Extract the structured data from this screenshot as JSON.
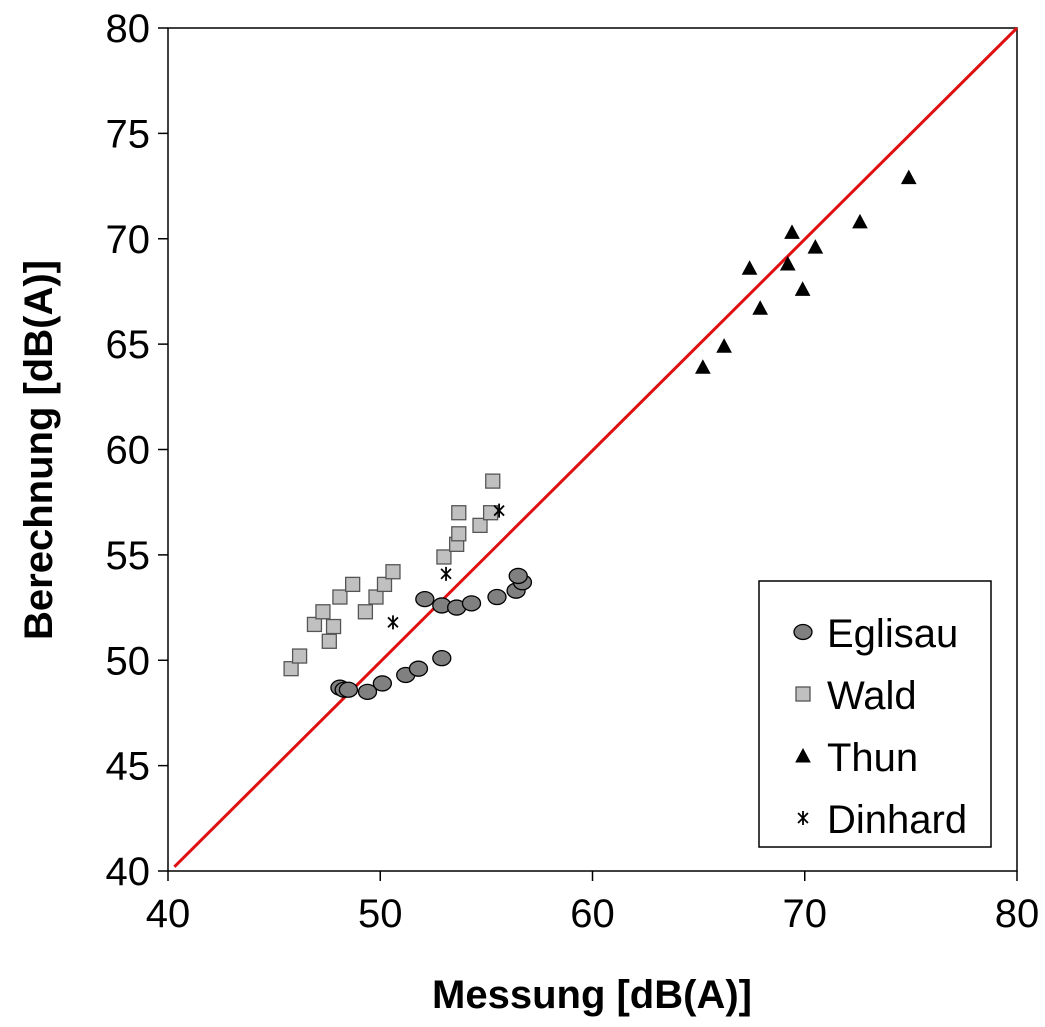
{
  "chart_data": {
    "type": "scatter",
    "title": "",
    "xlabel": "Messung [dB(A)]",
    "ylabel": "Berechnung [dB(A)]",
    "xlim": [
      40,
      80
    ],
    "ylim": [
      40,
      80
    ],
    "xticks": [
      40,
      50,
      60,
      70,
      80
    ],
    "yticks": [
      40,
      45,
      50,
      55,
      60,
      65,
      70,
      75,
      80
    ],
    "grid": false,
    "legend_position": "bottom-right",
    "reference_line": {
      "from": [
        40.3,
        40.2
      ],
      "to": [
        80,
        80
      ],
      "color": "#e01010"
    },
    "series": [
      {
        "name": "Eglisau",
        "marker": "circle",
        "fill": "#808080",
        "points": [
          {
            "x": 48.1,
            "y": 48.7
          },
          {
            "x": 48.3,
            "y": 48.6
          },
          {
            "x": 48.5,
            "y": 48.6
          },
          {
            "x": 49.4,
            "y": 48.5
          },
          {
            "x": 50.1,
            "y": 48.9
          },
          {
            "x": 51.2,
            "y": 49.3
          },
          {
            "x": 51.8,
            "y": 49.6
          },
          {
            "x": 52.9,
            "y": 50.1
          },
          {
            "x": 52.1,
            "y": 52.9
          },
          {
            "x": 52.9,
            "y": 52.6
          },
          {
            "x": 53.6,
            "y": 52.5
          },
          {
            "x": 54.3,
            "y": 52.7
          },
          {
            "x": 55.5,
            "y": 53.0
          },
          {
            "x": 56.4,
            "y": 53.3
          },
          {
            "x": 56.7,
            "y": 53.7
          },
          {
            "x": 56.5,
            "y": 54.0
          }
        ]
      },
      {
        "name": "Wald",
        "marker": "square",
        "fill": "#c0c0c0",
        "points": [
          {
            "x": 45.8,
            "y": 49.6
          },
          {
            "x": 46.2,
            "y": 50.2
          },
          {
            "x": 46.9,
            "y": 51.7
          },
          {
            "x": 47.3,
            "y": 52.3
          },
          {
            "x": 47.6,
            "y": 50.9
          },
          {
            "x": 47.8,
            "y": 51.6
          },
          {
            "x": 48.1,
            "y": 53.0
          },
          {
            "x": 48.7,
            "y": 53.6
          },
          {
            "x": 49.3,
            "y": 52.3
          },
          {
            "x": 49.8,
            "y": 53.0
          },
          {
            "x": 50.2,
            "y": 53.6
          },
          {
            "x": 50.6,
            "y": 54.2
          },
          {
            "x": 53.0,
            "y": 54.9
          },
          {
            "x": 53.6,
            "y": 55.5
          },
          {
            "x": 53.7,
            "y": 56.0
          },
          {
            "x": 53.7,
            "y": 57.0
          },
          {
            "x": 54.7,
            "y": 56.4
          },
          {
            "x": 55.2,
            "y": 57.0
          },
          {
            "x": 55.3,
            "y": 58.5
          }
        ]
      },
      {
        "name": "Thun",
        "marker": "triangle",
        "fill": "#000000",
        "points": [
          {
            "x": 65.2,
            "y": 63.9
          },
          {
            "x": 66.2,
            "y": 64.9
          },
          {
            "x": 67.4,
            "y": 68.6
          },
          {
            "x": 67.9,
            "y": 66.7
          },
          {
            "x": 69.2,
            "y": 68.8
          },
          {
            "x": 69.4,
            "y": 70.3
          },
          {
            "x": 69.9,
            "y": 67.6
          },
          {
            "x": 70.5,
            "y": 69.6
          },
          {
            "x": 72.6,
            "y": 70.8
          },
          {
            "x": 74.9,
            "y": 72.9
          }
        ]
      },
      {
        "name": "Dinhard",
        "marker": "star",
        "fill": "#000000",
        "points": [
          {
            "x": 50.6,
            "y": 51.8
          },
          {
            "x": 53.1,
            "y": 54.1
          },
          {
            "x": 55.6,
            "y": 57.1
          }
        ]
      }
    ]
  }
}
